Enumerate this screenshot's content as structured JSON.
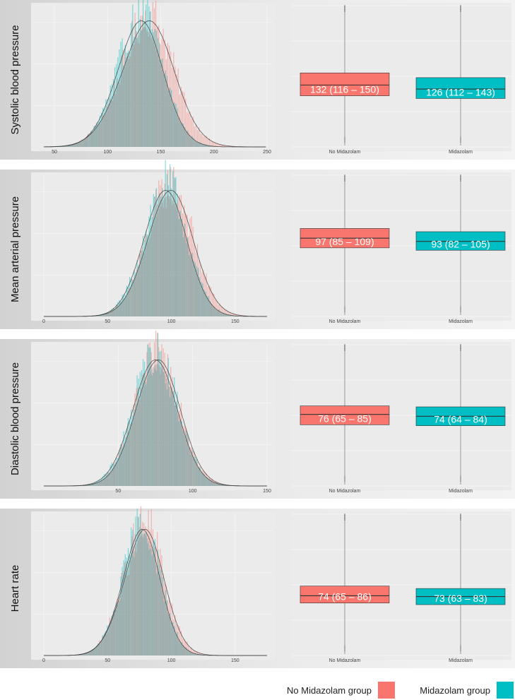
{
  "colors": {
    "no_midazolam": "#F8766D",
    "midazolam": "#00BFC4",
    "panel_bg": "#EBEBEB",
    "grid": "#F7F7F7"
  },
  "chart_data": [
    {
      "type": "histogram",
      "row_label": "Systolic blood pressure",
      "x_ticks": [
        "50",
        "100",
        "150",
        "200",
        "250"
      ],
      "x_range": [
        40,
        250
      ],
      "series": [
        {
          "name": "No Midazolam",
          "mean": 134,
          "sd": 25,
          "skew": 1
        },
        {
          "name": "Midazolam",
          "mean": 127,
          "sd": 22,
          "skew": 1
        }
      ],
      "box": {
        "categories": [
          "No Midazolam",
          "Midazolam"
        ],
        "y_range": [
          40,
          250
        ],
        "groups": [
          {
            "name": "No Midazolam",
            "median": 132,
            "q1": 116,
            "q3": 150,
            "label": "132 (116 – 150)"
          },
          {
            "name": "Midazolam",
            "median": 126,
            "q1": 112,
            "q3": 143,
            "label": "126 (112 – 143)"
          }
        ]
      }
    },
    {
      "type": "histogram",
      "row_label": "Mean arterial pressure",
      "x_ticks": [
        "0",
        "50",
        "100",
        "150"
      ],
      "x_range": [
        0,
        175
      ],
      "series": [
        {
          "name": "No Midazolam",
          "mean": 98,
          "sd": 18,
          "skew": 0.4
        },
        {
          "name": "Midazolam",
          "mean": 94,
          "sd": 17,
          "skew": 0.4
        }
      ],
      "box": {
        "categories": [
          "No Midazolam",
          "Midazolam"
        ],
        "y_range": [
          0,
          175
        ],
        "groups": [
          {
            "name": "No Midazolam",
            "median": 97,
            "q1": 85,
            "q3": 109,
            "label": "97 (85 – 109)"
          },
          {
            "name": "Midazolam",
            "median": 93,
            "q1": 82,
            "q3": 105,
            "label": "93 (82 – 105)"
          }
        ]
      }
    },
    {
      "type": "histogram",
      "row_label": "Diastolic blood pressure",
      "x_ticks": [
        "50",
        "100",
        "150"
      ],
      "x_range": [
        0,
        150
      ],
      "series": [
        {
          "name": "No Midazolam",
          "mean": 76,
          "sd": 15,
          "skew": 0.3
        },
        {
          "name": "Midazolam",
          "mean": 74,
          "sd": 15,
          "skew": 0.3
        }
      ],
      "box": {
        "categories": [
          "No Midazolam",
          "Midazolam"
        ],
        "y_range": [
          0,
          150
        ],
        "groups": [
          {
            "name": "No Midazolam",
            "median": 76,
            "q1": 65,
            "q3": 85,
            "label": "76 (65 – 85)"
          },
          {
            "name": "Midazolam",
            "median": 74,
            "q1": 64,
            "q3": 84,
            "label": "74 (64 – 84)"
          }
        ]
      }
    },
    {
      "type": "histogram",
      "row_label": "Heart rate",
      "x_ticks": [
        "0",
        "50",
        "100",
        "150"
      ],
      "x_range": [
        0,
        175
      ],
      "series": [
        {
          "name": "No Midazolam",
          "mean": 76,
          "sd": 16,
          "skew": 1
        },
        {
          "name": "Midazolam",
          "mean": 74,
          "sd": 15,
          "skew": 1
        }
      ],
      "box": {
        "categories": [
          "No Midazolam",
          "Midazolam"
        ],
        "y_range": [
          0,
          175
        ],
        "groups": [
          {
            "name": "No Midazolam",
            "median": 74,
            "q1": 65,
            "q3": 86,
            "label": "74 (65 – 86)"
          },
          {
            "name": "Midazolam",
            "median": 73,
            "q1": 63,
            "q3": 83,
            "label": "73 (63 – 83)"
          }
        ]
      }
    }
  ],
  "legend": [
    {
      "label": "No Midazolam group"
    },
    {
      "label": "Midazolam group"
    }
  ]
}
